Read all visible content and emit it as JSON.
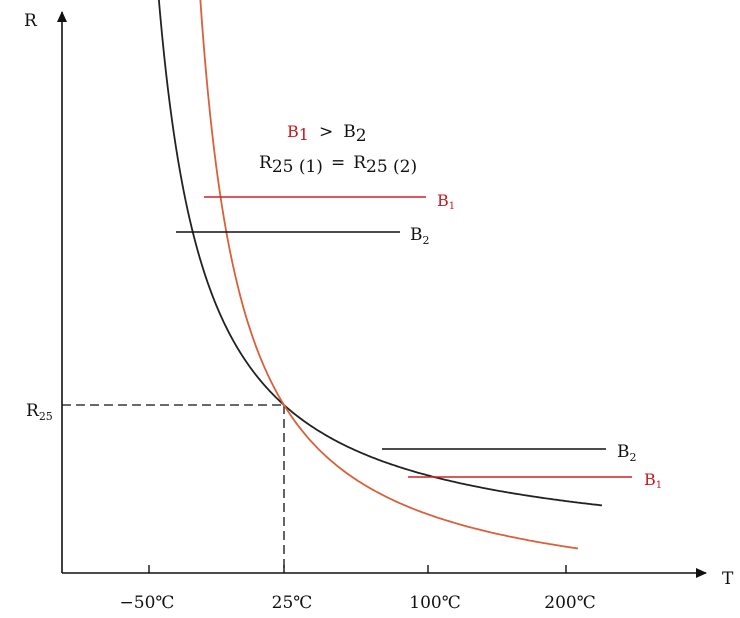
{
  "chart_data": {
    "type": "line",
    "xlabel": "T",
    "ylabel": "R",
    "x_ticks": [
      "−50℃",
      "25℃",
      "100℃",
      "200℃"
    ],
    "y_mark": {
      "label": "R",
      "sub": "25",
      "at_x": "25℃"
    },
    "relation_1": {
      "left": "B",
      "left_sub": "1",
      "op": ">",
      "right": "B",
      "right_sub": "2"
    },
    "relation_2": {
      "left": "R",
      "left_sub": "25 (1)",
      "op": "=",
      "right": "R",
      "right_sub": "25 (2)"
    },
    "series": [
      {
        "name": "B1",
        "label": "B",
        "label_sub": "1",
        "color": "#d9603a",
        "label_color": "#c8191e"
      },
      {
        "name": "B2",
        "label": "B",
        "label_sub": "2",
        "color": "#222222",
        "label_color": "#111111"
      }
    ],
    "grid": false,
    "legend": "none"
  }
}
